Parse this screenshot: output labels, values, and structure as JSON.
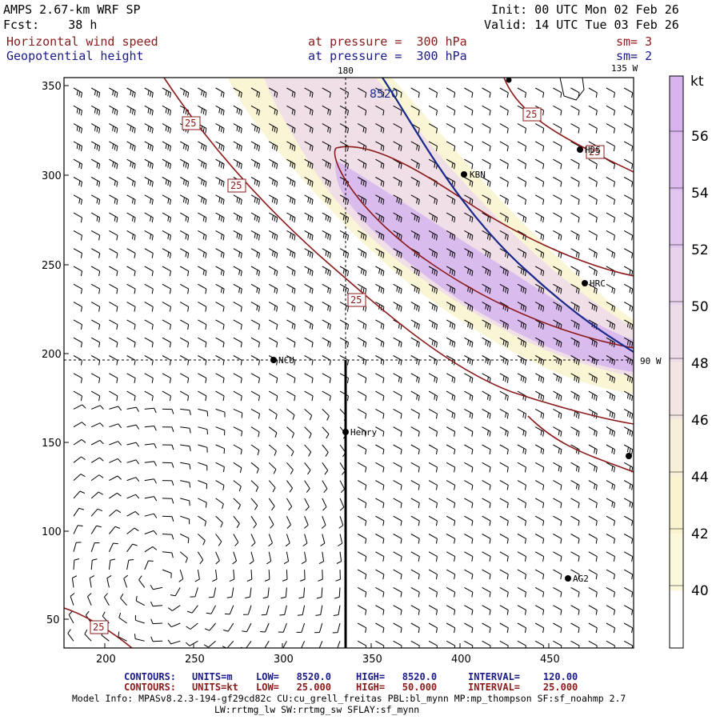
{
  "header": {
    "model": "AMPS 2.67-km WRF SP",
    "fcst": "Fcst:    38 h",
    "init": "Init: 00 UTC Mon 02 Feb 26",
    "valid": "Valid: 14 UTC Tue 03 Feb 26",
    "field1": {
      "name": "Horizontal wind speed",
      "level": "at pressure =  300 hPa",
      "smooth": "sm= 3",
      "color": "#8b1a1a"
    },
    "field2": {
      "name": "Geopotential height",
      "level": "at pressure =  300 hPa",
      "smooth": "sm= 2",
      "color": "#1a1a8b"
    }
  },
  "map": {
    "longitude_labels": [
      "180",
      "135 W",
      "90 W"
    ],
    "contour_labels": {
      "height": "8520",
      "speed": [
        "25",
        "25",
        "25",
        "25",
        "25",
        "25"
      ]
    },
    "stations": [
      "KBN",
      "HDS",
      "HRC",
      "NCU",
      "Henry",
      "AG2"
    ],
    "x_ticks": [
      "200",
      "250",
      "300",
      "350",
      "400",
      "450"
    ],
    "y_ticks": [
      "350",
      "300",
      "250",
      "200",
      "150",
      "100",
      "50"
    ]
  },
  "colorbar": {
    "unit": "kt",
    "labels": [
      "56",
      "54",
      "52",
      "50",
      "48",
      "46",
      "44",
      "42",
      "40"
    ],
    "colors": [
      "#d9b3f0",
      "#ddbbef",
      "#e2c6ef",
      "#e8d2ec",
      "#eedce8",
      "#f3e6e2",
      "#f7efd7",
      "#f9f4cf",
      "#fbf8dc",
      "#ffffff"
    ]
  },
  "footer": {
    "row1": {
      "label": "CONTOURS:",
      "units": "UNITS=m",
      "low": "LOW=   8520.0",
      "high": "HIGH=   8520.0",
      "interval": "INTERVAL=    120.00"
    },
    "row2": {
      "label": "CONTOURS:",
      "units": "UNITS=kt",
      "low": "LOW=   25.000",
      "high": "HIGH=   50.000",
      "interval": "INTERVAL=    25.000"
    },
    "model_info": "Model Info: MPASv8.2.3-194-gf29cd82c CU:cu_grell_freitas PBL:bl_mynn MP:mp_thompson SF:sf_noahmp 2.7",
    "model_info2": "LW:rrtmg_lw SW:rrtmg_sw SFLAY:sf_mynn"
  }
}
